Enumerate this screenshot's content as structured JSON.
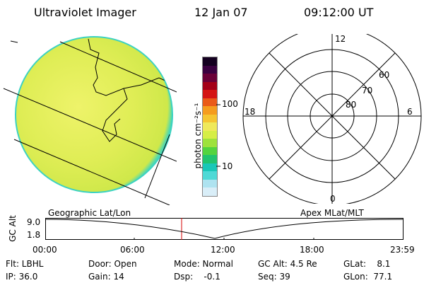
{
  "header": {
    "title": "Ultraviolet Imager",
    "date": "12 Jan 07",
    "time": "09:12:00 UT"
  },
  "colorbar": {
    "unit_label": "photon cm⁻²s⁻¹",
    "tick_100": "100",
    "tick_10": "10",
    "colors": [
      "#d9eef8",
      "#aee3f0",
      "#4fd9d6",
      "#19c7b8",
      "#21c46f",
      "#53d43f",
      "#9ee23c",
      "#d6ee46",
      "#efe95a",
      "#f5c531",
      "#f59c1e",
      "#ea5a18",
      "#d41414",
      "#a40018",
      "#6a0038",
      "#3a0040",
      "#140020"
    ]
  },
  "polar": {
    "mlt_12": "12",
    "mlt_18": "18",
    "mlt_6": "6",
    "mlt_0": "0",
    "lat_60": "60",
    "lat_70": "70",
    "lat_80": "80"
  },
  "timeline": {
    "left_label": "Geographic Lat/Lon",
    "right_label": "Apex MLat/MLT",
    "y_axis_label": "GC Alt",
    "y_top": "9.0",
    "y_bottom": "1.8",
    "x_ticks": [
      "00:00",
      "06:00",
      "12:00",
      "18:00",
      "23:59"
    ],
    "current_time_marker": "09:12"
  },
  "info": {
    "flt": "Flt: LBHL",
    "ip": "IP: 36.0",
    "door": "Door: Open",
    "gain": "Gain: 14",
    "mode": "Mode: Normal",
    "dsp": "Dsp:    -0.1",
    "gcalt": "GC Alt: 4.5 Re",
    "seq": "Seq: 39",
    "glat": "GLat:    8.1",
    "glon": "GLon:  77.1"
  }
}
